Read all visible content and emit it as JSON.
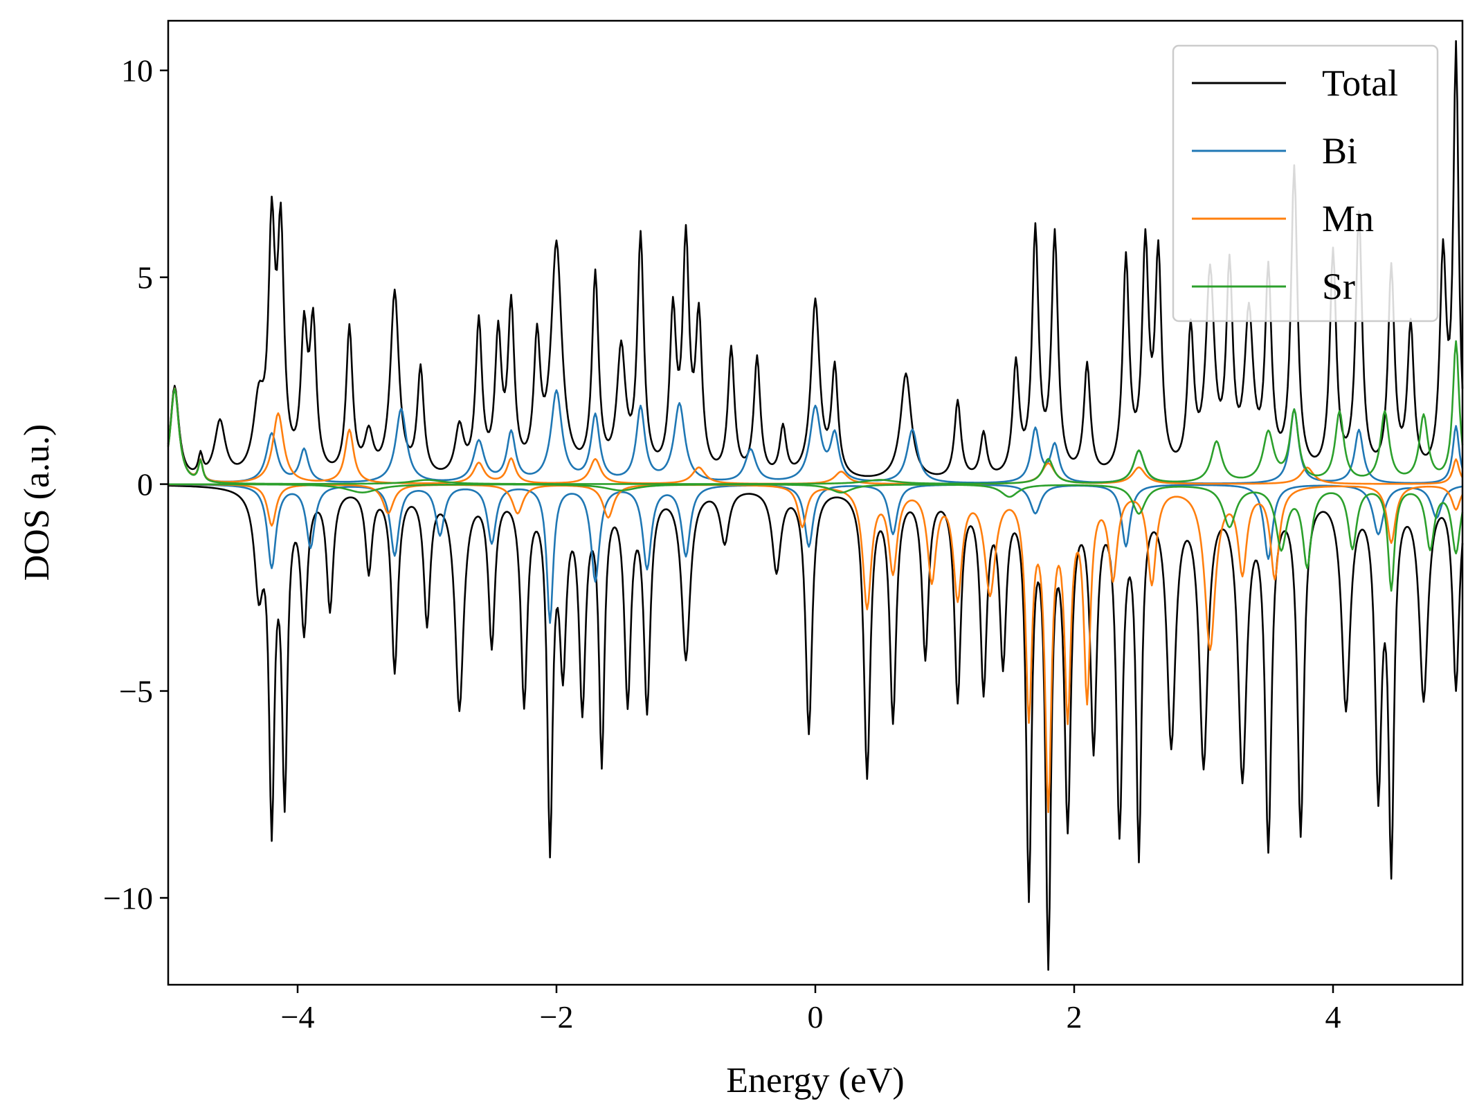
{
  "chart_data": {
    "type": "line",
    "title": "",
    "xlabel": "Energy (eV)",
    "ylabel": "DOS (a.u.)",
    "xlim": [
      -5,
      5
    ],
    "ylim": [
      -12.1,
      11.2
    ],
    "xticks": [
      -4,
      -2,
      0,
      2,
      4
    ],
    "xtick_labels": [
      "−4",
      "−2",
      "0",
      "2",
      "4"
    ],
    "yticks": [
      -10,
      -5,
      0,
      5,
      10
    ],
    "ytick_labels": [
      "−10",
      "−5",
      "0",
      "5",
      "10"
    ],
    "grid": false,
    "legend_position": "top-right",
    "colors": {
      "Total": "#000000",
      "Bi": "#1f77b4",
      "Mn": "#ff7f0e",
      "Sr": "#2ca02c"
    },
    "series": [
      {
        "name": "Total",
        "spin_up": [
          {
            "e": -4.95,
            "dos": 2.3,
            "w": 0.04
          },
          {
            "e": -4.75,
            "dos": 0.5,
            "w": 0.02
          },
          {
            "e": -4.6,
            "dos": 1.4,
            "w": 0.05
          },
          {
            "e": -4.3,
            "dos": 1.7,
            "w": 0.05
          },
          {
            "e": -4.2,
            "dos": 5.6,
            "w": 0.03
          },
          {
            "e": -4.13,
            "dos": 5.6,
            "w": 0.03
          },
          {
            "e": -3.95,
            "dos": 3.3,
            "w": 0.03
          },
          {
            "e": -3.88,
            "dos": 3.5,
            "w": 0.03
          },
          {
            "e": -3.6,
            "dos": 3.6,
            "w": 0.03
          },
          {
            "e": -3.45,
            "dos": 1.0,
            "w": 0.04
          },
          {
            "e": -3.25,
            "dos": 4.5,
            "w": 0.04
          },
          {
            "e": -3.05,
            "dos": 2.6,
            "w": 0.03
          },
          {
            "e": -2.75,
            "dos": 1.2,
            "w": 0.04
          },
          {
            "e": -2.6,
            "dos": 3.7,
            "w": 0.03
          },
          {
            "e": -2.45,
            "dos": 3.3,
            "w": 0.03
          },
          {
            "e": -2.35,
            "dos": 4.0,
            "w": 0.03
          },
          {
            "e": -2.15,
            "dos": 3.1,
            "w": 0.03
          },
          {
            "e": -2.0,
            "dos": 5.6,
            "w": 0.05
          },
          {
            "e": -1.7,
            "dos": 4.8,
            "w": 0.03
          },
          {
            "e": -1.5,
            "dos": 3.0,
            "w": 0.04
          },
          {
            "e": -1.35,
            "dos": 5.7,
            "w": 0.03
          },
          {
            "e": -1.1,
            "dos": 3.8,
            "w": 0.03
          },
          {
            "e": -1.0,
            "dos": 5.5,
            "w": 0.03
          },
          {
            "e": -0.9,
            "dos": 3.7,
            "w": 0.03
          },
          {
            "e": -0.65,
            "dos": 3.1,
            "w": 0.03
          },
          {
            "e": -0.45,
            "dos": 2.9,
            "w": 0.03
          },
          {
            "e": -0.25,
            "dos": 1.2,
            "w": 0.03
          },
          {
            "e": 0.0,
            "dos": 4.3,
            "w": 0.04
          },
          {
            "e": 0.15,
            "dos": 2.6,
            "w": 0.03
          },
          {
            "e": 0.7,
            "dos": 2.6,
            "w": 0.05
          },
          {
            "e": 1.1,
            "dos": 1.9,
            "w": 0.03
          },
          {
            "e": 1.3,
            "dos": 1.1,
            "w": 0.03
          },
          {
            "e": 1.55,
            "dos": 2.7,
            "w": 0.03
          },
          {
            "e": 1.7,
            "dos": 5.9,
            "w": 0.03
          },
          {
            "e": 1.85,
            "dos": 5.8,
            "w": 0.03
          },
          {
            "e": 2.1,
            "dos": 2.7,
            "w": 0.03
          },
          {
            "e": 2.4,
            "dos": 5.2,
            "w": 0.03
          },
          {
            "e": 2.55,
            "dos": 5.4,
            "w": 0.03
          },
          {
            "e": 2.65,
            "dos": 5.2,
            "w": 0.03
          },
          {
            "e": 2.9,
            "dos": 3.4,
            "w": 0.03
          },
          {
            "e": 3.05,
            "dos": 4.8,
            "w": 0.04
          },
          {
            "e": 3.2,
            "dos": 4.8,
            "w": 0.03
          },
          {
            "e": 3.35,
            "dos": 3.8,
            "w": 0.04
          },
          {
            "e": 3.5,
            "dos": 4.8,
            "w": 0.03
          },
          {
            "e": 3.7,
            "dos": 7.4,
            "w": 0.03
          },
          {
            "e": 4.0,
            "dos": 5.4,
            "w": 0.03
          },
          {
            "e": 4.2,
            "dos": 6.3,
            "w": 0.03
          },
          {
            "e": 4.45,
            "dos": 5.0,
            "w": 0.03
          },
          {
            "e": 4.6,
            "dos": 3.6,
            "w": 0.03
          },
          {
            "e": 4.85,
            "dos": 5.2,
            "w": 0.03
          },
          {
            "e": 4.95,
            "dos": 10.2,
            "w": 0.025
          }
        ],
        "spin_down": [
          {
            "e": -4.3,
            "dos": -2.3,
            "w": 0.04
          },
          {
            "e": -4.2,
            "dos": -7.8,
            "w": 0.025
          },
          {
            "e": -4.1,
            "dos": -7.2,
            "w": 0.025
          },
          {
            "e": -3.95,
            "dos": -3.3,
            "w": 0.03
          },
          {
            "e": -3.75,
            "dos": -2.9,
            "w": 0.03
          },
          {
            "e": -3.45,
            "dos": -2.0,
            "w": 0.03
          },
          {
            "e": -3.25,
            "dos": -4.4,
            "w": 0.03
          },
          {
            "e": -3.0,
            "dos": -3.2,
            "w": 0.03
          },
          {
            "e": -2.75,
            "dos": -5.3,
            "w": 0.04
          },
          {
            "e": -2.5,
            "dos": -3.7,
            "w": 0.03
          },
          {
            "e": -2.25,
            "dos": -5.1,
            "w": 0.03
          },
          {
            "e": -2.05,
            "dos": -8.4,
            "w": 0.025
          },
          {
            "e": -1.95,
            "dos": -4.0,
            "w": 0.03
          },
          {
            "e": -1.8,
            "dos": -5.1,
            "w": 0.03
          },
          {
            "e": -1.65,
            "dos": -6.4,
            "w": 0.025
          },
          {
            "e": -1.45,
            "dos": -5.0,
            "w": 0.03
          },
          {
            "e": -1.3,
            "dos": -5.2,
            "w": 0.03
          },
          {
            "e": -1.0,
            "dos": -4.1,
            "w": 0.04
          },
          {
            "e": -0.7,
            "dos": -1.3,
            "w": 0.04
          },
          {
            "e": -0.3,
            "dos": -2.0,
            "w": 0.04
          },
          {
            "e": -0.05,
            "dos": -5.9,
            "w": 0.03
          },
          {
            "e": 0.4,
            "dos": -6.9,
            "w": 0.03
          },
          {
            "e": 0.6,
            "dos": -5.5,
            "w": 0.03
          },
          {
            "e": 0.85,
            "dos": -4.0,
            "w": 0.03
          },
          {
            "e": 1.1,
            "dos": -5.0,
            "w": 0.03
          },
          {
            "e": 1.3,
            "dos": -4.7,
            "w": 0.03
          },
          {
            "e": 1.45,
            "dos": -4.0,
            "w": 0.03
          },
          {
            "e": 1.65,
            "dos": -9.5,
            "w": 0.025
          },
          {
            "e": 1.8,
            "dos": -11.0,
            "w": 0.025
          },
          {
            "e": 1.95,
            "dos": -7.8,
            "w": 0.03
          },
          {
            "e": 2.15,
            "dos": -6.0,
            "w": 0.03
          },
          {
            "e": 2.35,
            "dos": -8.0,
            "w": 0.03
          },
          {
            "e": 2.5,
            "dos": -8.5,
            "w": 0.025
          },
          {
            "e": 2.75,
            "dos": -6.0,
            "w": 0.04
          },
          {
            "e": 3.0,
            "dos": -6.5,
            "w": 0.04
          },
          {
            "e": 3.3,
            "dos": -6.8,
            "w": 0.04
          },
          {
            "e": 3.5,
            "dos": -8.4,
            "w": 0.03
          },
          {
            "e": 3.75,
            "dos": -8.2,
            "w": 0.03
          },
          {
            "e": 4.1,
            "dos": -5.2,
            "w": 0.04
          },
          {
            "e": 4.35,
            "dos": -7.0,
            "w": 0.03
          },
          {
            "e": 4.45,
            "dos": -8.7,
            "w": 0.025
          },
          {
            "e": 4.7,
            "dos": -5.0,
            "w": 0.04
          },
          {
            "e": 4.95,
            "dos": -4.8,
            "w": 0.03
          }
        ]
      },
      {
        "name": "Bi",
        "spin_up": [
          {
            "e": -4.95,
            "dos": 2.3,
            "w": 0.04
          },
          {
            "e": -4.75,
            "dos": 0.5,
            "w": 0.02
          },
          {
            "e": -4.2,
            "dos": 1.2,
            "w": 0.05
          },
          {
            "e": -3.95,
            "dos": 0.8,
            "w": 0.04
          },
          {
            "e": -3.2,
            "dos": 1.8,
            "w": 0.05
          },
          {
            "e": -2.6,
            "dos": 1.0,
            "w": 0.05
          },
          {
            "e": -2.35,
            "dos": 1.2,
            "w": 0.04
          },
          {
            "e": -2.0,
            "dos": 2.2,
            "w": 0.05
          },
          {
            "e": -1.7,
            "dos": 1.6,
            "w": 0.04
          },
          {
            "e": -1.35,
            "dos": 1.8,
            "w": 0.04
          },
          {
            "e": -1.05,
            "dos": 1.9,
            "w": 0.05
          },
          {
            "e": -0.5,
            "dos": 0.8,
            "w": 0.05
          },
          {
            "e": 0.0,
            "dos": 1.8,
            "w": 0.05
          },
          {
            "e": 0.15,
            "dos": 1.1,
            "w": 0.04
          },
          {
            "e": 0.75,
            "dos": 1.3,
            "w": 0.05
          },
          {
            "e": 1.7,
            "dos": 1.3,
            "w": 0.04
          },
          {
            "e": 1.85,
            "dos": 0.9,
            "w": 0.04
          },
          {
            "e": 2.5,
            "dos": 0.8,
            "w": 0.05
          },
          {
            "e": 3.7,
            "dos": 1.8,
            "w": 0.04
          },
          {
            "e": 4.2,
            "dos": 1.3,
            "w": 0.04
          },
          {
            "e": 4.95,
            "dos": 1.4,
            "w": 0.03
          }
        ],
        "spin_down": [
          {
            "e": -4.2,
            "dos": -2.0,
            "w": 0.04
          },
          {
            "e": -3.9,
            "dos": -1.5,
            "w": 0.04
          },
          {
            "e": -3.25,
            "dos": -1.7,
            "w": 0.04
          },
          {
            "e": -2.9,
            "dos": -1.2,
            "w": 0.04
          },
          {
            "e": -2.5,
            "dos": -1.4,
            "w": 0.04
          },
          {
            "e": -2.05,
            "dos": -3.3,
            "w": 0.03
          },
          {
            "e": -1.7,
            "dos": -2.3,
            "w": 0.04
          },
          {
            "e": -1.3,
            "dos": -2.0,
            "w": 0.04
          },
          {
            "e": -1.0,
            "dos": -1.7,
            "w": 0.04
          },
          {
            "e": -0.05,
            "dos": -1.5,
            "w": 0.04
          },
          {
            "e": 0.6,
            "dos": -1.2,
            "w": 0.04
          },
          {
            "e": 1.7,
            "dos": -0.7,
            "w": 0.05
          },
          {
            "e": 2.4,
            "dos": -1.5,
            "w": 0.04
          },
          {
            "e": 3.5,
            "dos": -1.8,
            "w": 0.04
          },
          {
            "e": 4.35,
            "dos": -1.2,
            "w": 0.05
          },
          {
            "e": 4.8,
            "dos": -0.8,
            "w": 0.05
          }
        ]
      },
      {
        "name": "Mn",
        "spin_up": [
          {
            "e": -4.95,
            "dos": 2.3,
            "w": 0.04
          },
          {
            "e": -4.75,
            "dos": 0.5,
            "w": 0.02
          },
          {
            "e": -4.15,
            "dos": 1.7,
            "w": 0.05
          },
          {
            "e": -3.6,
            "dos": 1.3,
            "w": 0.04
          },
          {
            "e": -2.6,
            "dos": 0.5,
            "w": 0.05
          },
          {
            "e": -2.35,
            "dos": 0.6,
            "w": 0.04
          },
          {
            "e": -1.7,
            "dos": 0.6,
            "w": 0.05
          },
          {
            "e": -0.9,
            "dos": 0.4,
            "w": 0.06
          },
          {
            "e": 0.2,
            "dos": 0.3,
            "w": 0.06
          },
          {
            "e": 1.8,
            "dos": 0.5,
            "w": 0.06
          },
          {
            "e": 2.5,
            "dos": 0.4,
            "w": 0.06
          },
          {
            "e": 3.8,
            "dos": 0.4,
            "w": 0.06
          },
          {
            "e": 4.95,
            "dos": 0.6,
            "w": 0.03
          }
        ],
        "spin_down": [
          {
            "e": -4.2,
            "dos": -1.0,
            "w": 0.04
          },
          {
            "e": -3.3,
            "dos": -0.7,
            "w": 0.05
          },
          {
            "e": -2.3,
            "dos": -0.7,
            "w": 0.05
          },
          {
            "e": -1.6,
            "dos": -0.8,
            "w": 0.05
          },
          {
            "e": -0.1,
            "dos": -1.0,
            "w": 0.04
          },
          {
            "e": 0.4,
            "dos": -2.9,
            "w": 0.04
          },
          {
            "e": 0.6,
            "dos": -2.0,
            "w": 0.04
          },
          {
            "e": 0.9,
            "dos": -2.2,
            "w": 0.04
          },
          {
            "e": 1.1,
            "dos": -2.6,
            "w": 0.04
          },
          {
            "e": 1.35,
            "dos": -2.5,
            "w": 0.05
          },
          {
            "e": 1.65,
            "dos": -5.3,
            "w": 0.03
          },
          {
            "e": 1.8,
            "dos": -7.4,
            "w": 0.03
          },
          {
            "e": 1.95,
            "dos": -5.2,
            "w": 0.03
          },
          {
            "e": 2.1,
            "dos": -4.9,
            "w": 0.03
          },
          {
            "e": 2.3,
            "dos": -2.1,
            "w": 0.04
          },
          {
            "e": 2.6,
            "dos": -2.3,
            "w": 0.04
          },
          {
            "e": 3.05,
            "dos": -3.9,
            "w": 0.05
          },
          {
            "e": 3.3,
            "dos": -2.0,
            "w": 0.04
          },
          {
            "e": 3.55,
            "dos": -2.2,
            "w": 0.04
          },
          {
            "e": 4.45,
            "dos": -1.4,
            "w": 0.04
          },
          {
            "e": 4.95,
            "dos": -0.6,
            "w": 0.04
          }
        ]
      },
      {
        "name": "Sr",
        "spin_up": [
          {
            "e": -4.95,
            "dos": 2.3,
            "w": 0.04
          },
          {
            "e": -4.75,
            "dos": 0.5,
            "w": 0.02
          },
          {
            "e": -3.0,
            "dos": 0.1,
            "w": 0.15
          },
          {
            "e": 0.5,
            "dos": 0.1,
            "w": 0.15
          },
          {
            "e": 1.8,
            "dos": 0.6,
            "w": 0.05
          },
          {
            "e": 2.5,
            "dos": 0.8,
            "w": 0.05
          },
          {
            "e": 3.1,
            "dos": 1.0,
            "w": 0.05
          },
          {
            "e": 3.5,
            "dos": 1.2,
            "w": 0.05
          },
          {
            "e": 3.7,
            "dos": 1.7,
            "w": 0.04
          },
          {
            "e": 4.05,
            "dos": 1.7,
            "w": 0.04
          },
          {
            "e": 4.4,
            "dos": 1.7,
            "w": 0.04
          },
          {
            "e": 4.7,
            "dos": 1.6,
            "w": 0.04
          },
          {
            "e": 4.95,
            "dos": 3.4,
            "w": 0.03
          }
        ],
        "spin_down": [
          {
            "e": -3.5,
            "dos": -0.2,
            "w": 0.15
          },
          {
            "e": -1.5,
            "dos": -0.15,
            "w": 0.15
          },
          {
            "e": 0.2,
            "dos": -0.2,
            "w": 0.1
          },
          {
            "e": 1.5,
            "dos": -0.3,
            "w": 0.08
          },
          {
            "e": 2.5,
            "dos": -0.7,
            "w": 0.06
          },
          {
            "e": 3.2,
            "dos": -1.0,
            "w": 0.06
          },
          {
            "e": 3.6,
            "dos": -1.5,
            "w": 0.05
          },
          {
            "e": 3.8,
            "dos": -1.9,
            "w": 0.04
          },
          {
            "e": 4.15,
            "dos": -1.5,
            "w": 0.04
          },
          {
            "e": 4.45,
            "dos": -2.5,
            "w": 0.03
          },
          {
            "e": 4.75,
            "dos": -1.5,
            "w": 0.04
          },
          {
            "e": 4.95,
            "dos": -1.6,
            "w": 0.04
          }
        ]
      }
    ]
  }
}
